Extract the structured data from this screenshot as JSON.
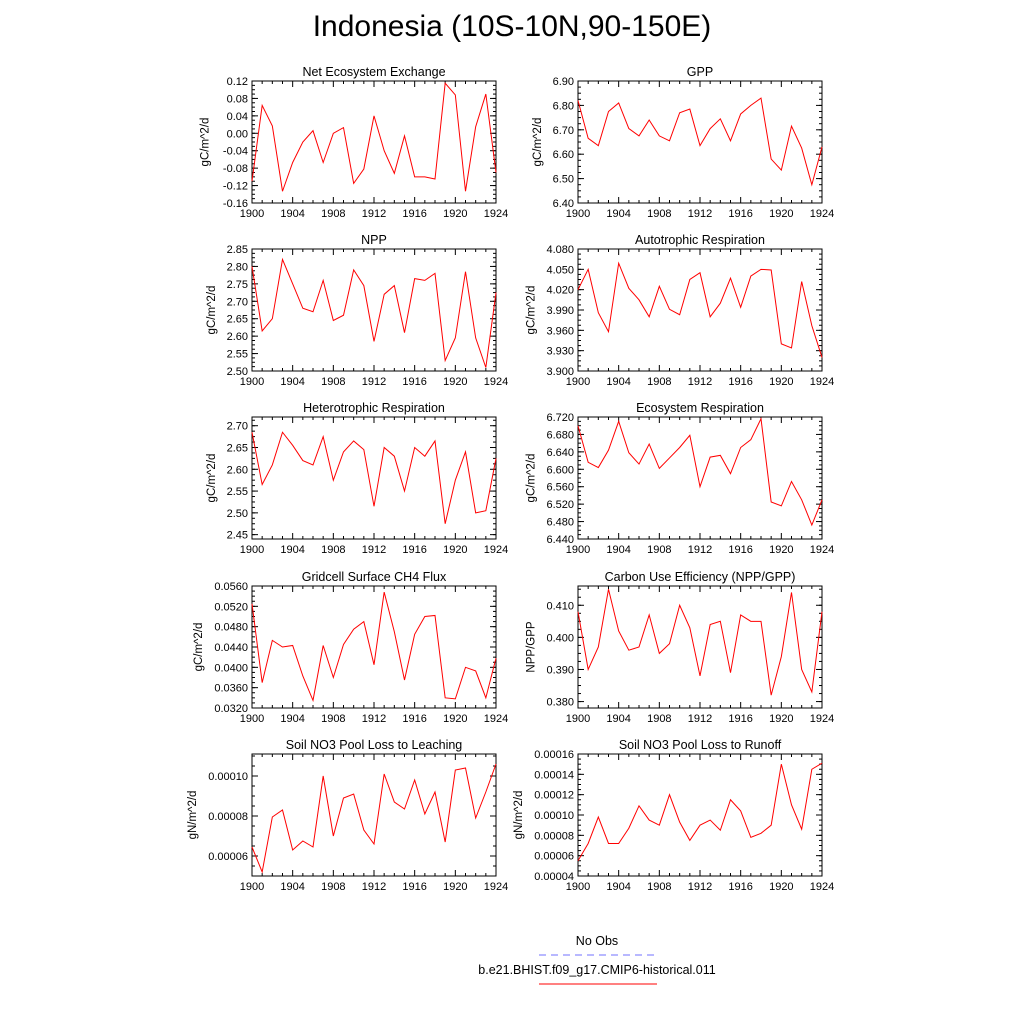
{
  "page": {
    "title": "Indonesia (10S-10N,90-150E)"
  },
  "legend": {
    "obs_label": "No Obs",
    "obs_color": "#7070ff",
    "model_label": "b.e21.BHIST.f09_g17.CMIP6-historical.011",
    "model_color": "#ff0000"
  },
  "chart_data": [
    {
      "type": "line",
      "title": "Net Ecosystem Exchange",
      "ylabel": "gC/m^2/d",
      "xlim": [
        1900,
        1924
      ],
      "ylim": [
        -0.16,
        0.12
      ],
      "xticks": [
        "1900",
        "1904",
        "1908",
        "1912",
        "1916",
        "1920",
        "1924"
      ],
      "yticks": [
        "0.12",
        "0.08",
        "0.04",
        "0.00",
        "-0.04",
        "-0.08",
        "-0.12",
        "-0.16"
      ],
      "yticks_values": [
        0.12,
        0.08,
        0.04,
        0.0,
        -0.04,
        -0.08,
        -0.12,
        -0.16
      ],
      "x": [
        1900,
        1901,
        1902,
        1903,
        1904,
        1905,
        1906,
        1907,
        1908,
        1909,
        1910,
        1911,
        1912,
        1913,
        1914,
        1915,
        1916,
        1917,
        1918,
        1919,
        1920,
        1921,
        1922,
        1923,
        1924
      ],
      "series": [
        {
          "values": [
            -0.11,
            0.064,
            0.017,
            -0.133,
            -0.067,
            -0.02,
            0.006,
            -0.067,
            0.0,
            0.013,
            -0.115,
            -0.082,
            0.04,
            -0.04,
            -0.092,
            -0.006,
            -0.1,
            -0.1,
            -0.105,
            0.115,
            0.088,
            -0.133,
            0.015,
            0.09,
            -0.09
          ]
        }
      ]
    },
    {
      "type": "line",
      "title": "GPP",
      "ylabel": "gC/m^2/d",
      "xlim": [
        1900,
        1924
      ],
      "ylim": [
        6.4,
        6.9
      ],
      "xticks": [
        "1900",
        "1904",
        "1908",
        "1912",
        "1916",
        "1920",
        "1924"
      ],
      "yticks": [
        "6.90",
        "6.80",
        "6.70",
        "6.60",
        "6.50",
        "6.40"
      ],
      "yticks_values": [
        6.9,
        6.8,
        6.7,
        6.6,
        6.5,
        6.4
      ],
      "x": [
        1900,
        1901,
        1902,
        1903,
        1904,
        1905,
        1906,
        1907,
        1908,
        1909,
        1910,
        1911,
        1912,
        1913,
        1914,
        1915,
        1916,
        1917,
        1918,
        1919,
        1920,
        1921,
        1922,
        1923,
        1924
      ],
      "series": [
        {
          "values": [
            6.82,
            6.665,
            6.635,
            6.775,
            6.81,
            6.705,
            6.675,
            6.74,
            6.675,
            6.655,
            6.77,
            6.785,
            6.635,
            6.705,
            6.745,
            6.655,
            6.765,
            6.8,
            6.83,
            6.58,
            6.535,
            6.715,
            6.625,
            6.475,
            6.63
          ]
        }
      ]
    },
    {
      "type": "line",
      "title": "NPP",
      "ylabel": "gC/m^2/d",
      "xlim": [
        1900,
        1924
      ],
      "ylim": [
        2.5,
        2.85
      ],
      "xticks": [
        "1900",
        "1904",
        "1908",
        "1912",
        "1916",
        "1920",
        "1924"
      ],
      "yticks": [
        "2.85",
        "2.80",
        "2.75",
        "2.70",
        "2.65",
        "2.60",
        "2.55",
        "2.50"
      ],
      "yticks_values": [
        2.85,
        2.8,
        2.75,
        2.7,
        2.65,
        2.6,
        2.55,
        2.5
      ],
      "x": [
        1900,
        1901,
        1902,
        1903,
        1904,
        1905,
        1906,
        1907,
        1908,
        1909,
        1910,
        1911,
        1912,
        1913,
        1914,
        1915,
        1916,
        1917,
        1918,
        1919,
        1920,
        1921,
        1922,
        1923,
        1924
      ],
      "series": [
        {
          "values": [
            2.8,
            2.615,
            2.65,
            2.82,
            2.75,
            2.68,
            2.67,
            2.76,
            2.645,
            2.66,
            2.79,
            2.745,
            2.585,
            2.72,
            2.745,
            2.61,
            2.765,
            2.76,
            2.78,
            2.53,
            2.595,
            2.785,
            2.595,
            2.51,
            2.725
          ]
        }
      ]
    },
    {
      "type": "line",
      "title": "Autotrophic Respiration",
      "ylabel": "gC/m^2/d",
      "xlim": [
        1900,
        1924
      ],
      "ylim": [
        3.9,
        4.08
      ],
      "xticks": [
        "1900",
        "1904",
        "1908",
        "1912",
        "1916",
        "1920",
        "1924"
      ],
      "yticks": [
        "4.080",
        "4.050",
        "4.020",
        "3.990",
        "3.960",
        "3.930",
        "3.900"
      ],
      "yticks_values": [
        4.08,
        4.05,
        4.02,
        3.99,
        3.96,
        3.93,
        3.9
      ],
      "x": [
        1900,
        1901,
        1902,
        1903,
        1904,
        1905,
        1906,
        1907,
        1908,
        1909,
        1910,
        1911,
        1912,
        1913,
        1914,
        1915,
        1916,
        1917,
        1918,
        1919,
        1920,
        1921,
        1922,
        1923,
        1924
      ],
      "series": [
        {
          "values": [
            4.02,
            4.05,
            3.986,
            3.958,
            4.059,
            4.022,
            4.005,
            3.98,
            4.025,
            3.991,
            3.983,
            4.035,
            4.045,
            3.98,
            4.0,
            4.037,
            3.994,
            4.04,
            4.05,
            4.049,
            3.94,
            3.934,
            4.032,
            3.967,
            3.92
          ]
        }
      ]
    },
    {
      "type": "line",
      "title": "Heterotrophic Respiration",
      "ylabel": "gC/m^2/d",
      "xlim": [
        1900,
        1924
      ],
      "ylim": [
        2.44,
        2.72
      ],
      "xticks": [
        "1900",
        "1904",
        "1908",
        "1912",
        "1916",
        "1920",
        "1924"
      ],
      "yticks": [
        "2.70",
        "2.65",
        "2.60",
        "2.55",
        "2.50",
        "2.45"
      ],
      "yticks_values": [
        2.7,
        2.65,
        2.6,
        2.55,
        2.5,
        2.45
      ],
      "x": [
        1900,
        1901,
        1902,
        1903,
        1904,
        1905,
        1906,
        1907,
        1908,
        1909,
        1910,
        1911,
        1912,
        1913,
        1914,
        1915,
        1916,
        1917,
        1918,
        1919,
        1920,
        1921,
        1922,
        1923,
        1924
      ],
      "series": [
        {
          "values": [
            2.685,
            2.565,
            2.61,
            2.685,
            2.655,
            2.62,
            2.61,
            2.675,
            2.575,
            2.64,
            2.665,
            2.645,
            2.515,
            2.65,
            2.63,
            2.55,
            2.65,
            2.63,
            2.665,
            2.475,
            2.575,
            2.64,
            2.5,
            2.505,
            2.625
          ]
        }
      ]
    },
    {
      "type": "line",
      "title": "Ecosystem Respiration",
      "ylabel": "gC/m^2/d",
      "xlim": [
        1900,
        1924
      ],
      "ylim": [
        6.44,
        6.72
      ],
      "xticks": [
        "1900",
        "1904",
        "1908",
        "1912",
        "1916",
        "1920",
        "1924"
      ],
      "yticks": [
        "6.720",
        "6.680",
        "6.640",
        "6.600",
        "6.560",
        "6.520",
        "6.480",
        "6.440"
      ],
      "yticks_values": [
        6.72,
        6.68,
        6.64,
        6.6,
        6.56,
        6.52,
        6.48,
        6.44
      ],
      "x": [
        1900,
        1901,
        1902,
        1903,
        1904,
        1905,
        1906,
        1907,
        1908,
        1909,
        1910,
        1911,
        1912,
        1913,
        1914,
        1915,
        1916,
        1917,
        1918,
        1919,
        1920,
        1921,
        1922,
        1923,
        1924
      ],
      "series": [
        {
          "values": [
            6.7,
            6.616,
            6.604,
            6.644,
            6.71,
            6.638,
            6.612,
            6.658,
            6.602,
            6.626,
            6.65,
            6.678,
            6.56,
            6.628,
            6.632,
            6.59,
            6.65,
            6.668,
            6.716,
            6.525,
            6.516,
            6.572,
            6.53,
            6.472,
            6.53
          ]
        }
      ]
    },
    {
      "type": "line",
      "title": "Gridcell Surface CH4 Flux",
      "ylabel": "gC/m^2/d",
      "xlim": [
        1900,
        1924
      ],
      "ylim": [
        0.032,
        0.056
      ],
      "xticks": [
        "1900",
        "1904",
        "1908",
        "1912",
        "1916",
        "1920",
        "1924"
      ],
      "yticks": [
        "0.0560",
        "0.0520",
        "0.0480",
        "0.0440",
        "0.0400",
        "0.0360",
        "0.0320"
      ],
      "yticks_values": [
        0.056,
        0.052,
        0.048,
        0.044,
        0.04,
        0.036,
        0.032
      ],
      "x": [
        1900,
        1901,
        1902,
        1903,
        1904,
        1905,
        1906,
        1907,
        1908,
        1909,
        1910,
        1911,
        1912,
        1913,
        1914,
        1915,
        1916,
        1917,
        1918,
        1919,
        1920,
        1921,
        1922,
        1923,
        1924
      ],
      "series": [
        {
          "values": [
            0.0525,
            0.037,
            0.0453,
            0.044,
            0.0443,
            0.0383,
            0.0335,
            0.0443,
            0.038,
            0.0445,
            0.0475,
            0.049,
            0.0405,
            0.0548,
            0.047,
            0.0375,
            0.0465,
            0.05,
            0.0502,
            0.034,
            0.0338,
            0.04,
            0.0393,
            0.034,
            0.0418
          ]
        }
      ]
    },
    {
      "type": "line",
      "title": "Carbon Use Efficiency (NPP/GPP)",
      "ylabel": "NPP/GPP",
      "xlim": [
        1900,
        1924
      ],
      "ylim": [
        0.378,
        0.416
      ],
      "xticks": [
        "1900",
        "1904",
        "1908",
        "1912",
        "1916",
        "1920",
        "1924"
      ],
      "yticks": [
        "0.410",
        "0.400",
        "0.390",
        "0.380"
      ],
      "yticks_values": [
        0.41,
        0.4,
        0.39,
        0.38
      ],
      "x": [
        1900,
        1901,
        1902,
        1903,
        1904,
        1905,
        1906,
        1907,
        1908,
        1909,
        1910,
        1911,
        1912,
        1913,
        1914,
        1915,
        1916,
        1917,
        1918,
        1919,
        1920,
        1921,
        1922,
        1923,
        1924
      ],
      "series": [
        {
          "values": [
            0.408,
            0.39,
            0.397,
            0.415,
            0.402,
            0.396,
            0.397,
            0.407,
            0.395,
            0.398,
            0.41,
            0.403,
            0.388,
            0.404,
            0.405,
            0.389,
            0.407,
            0.405,
            0.405,
            0.382,
            0.394,
            0.414,
            0.39,
            0.383,
            0.408
          ]
        }
      ]
    },
    {
      "type": "line",
      "title": "Soil NO3 Pool Loss to Leaching",
      "ylabel": "gN/m^2/d",
      "xlim": [
        1900,
        1924
      ],
      "ylim": [
        5e-05,
        0.000111
      ],
      "xticks": [
        "1900",
        "1904",
        "1908",
        "1912",
        "1916",
        "1920",
        "1924"
      ],
      "yticks": [
        "0.00010",
        "0.00008",
        "0.00006"
      ],
      "yticks_values": [
        0.0001,
        8e-05,
        6e-05
      ],
      "x": [
        1900,
        1901,
        1902,
        1903,
        1904,
        1905,
        1906,
        1907,
        1908,
        1909,
        1910,
        1911,
        1912,
        1913,
        1914,
        1915,
        1916,
        1917,
        1918,
        1919,
        1920,
        1921,
        1922,
        1923,
        1924
      ],
      "series": [
        {
          "values": [
            6.45e-05,
            5.2e-05,
            7.95e-05,
            8.3e-05,
            6.3e-05,
            6.75e-05,
            6.45e-05,
            0.0001,
            7e-05,
            8.9e-05,
            9.1e-05,
            7.3e-05,
            6.6e-05,
            0.000101,
            8.7e-05,
            8.35e-05,
            9.8e-05,
            8.1e-05,
            9.2e-05,
            6.7e-05,
            0.000103,
            0.000104,
            7.9e-05,
            9.2e-05,
            0.000106
          ]
        }
      ]
    },
    {
      "type": "line",
      "title": "Soil NO3 Pool Loss to Runoff",
      "ylabel": "gN/m^2/d",
      "xlim": [
        1900,
        1924
      ],
      "ylim": [
        4e-05,
        0.00016
      ],
      "xticks": [
        "1900",
        "1904",
        "1908",
        "1912",
        "1916",
        "1920",
        "1924"
      ],
      "yticks": [
        "0.00016",
        "0.00014",
        "0.00012",
        "0.00010",
        "0.00008",
        "0.00006",
        "0.00004"
      ],
      "yticks_values": [
        0.00016,
        0.00014,
        0.00012,
        0.0001,
        8e-05,
        6e-05,
        4e-05
      ],
      "x": [
        1900,
        1901,
        1902,
        1903,
        1904,
        1905,
        1906,
        1907,
        1908,
        1909,
        1910,
        1911,
        1912,
        1913,
        1914,
        1915,
        1916,
        1917,
        1918,
        1919,
        1920,
        1921,
        1922,
        1923,
        1924
      ],
      "series": [
        {
          "values": [
            5.5e-05,
            7.2e-05,
            9.8e-05,
            7.2e-05,
            7.2e-05,
            8.7e-05,
            0.000109,
            9.5e-05,
            9e-05,
            0.00012,
            9.3e-05,
            7.5e-05,
            9e-05,
            9.5e-05,
            8.5e-05,
            0.000115,
            0.000104,
            7.8e-05,
            8.2e-05,
            9e-05,
            0.00015,
            0.00011,
            8.6e-05,
            0.000145,
            0.000151
          ]
        }
      ]
    }
  ]
}
